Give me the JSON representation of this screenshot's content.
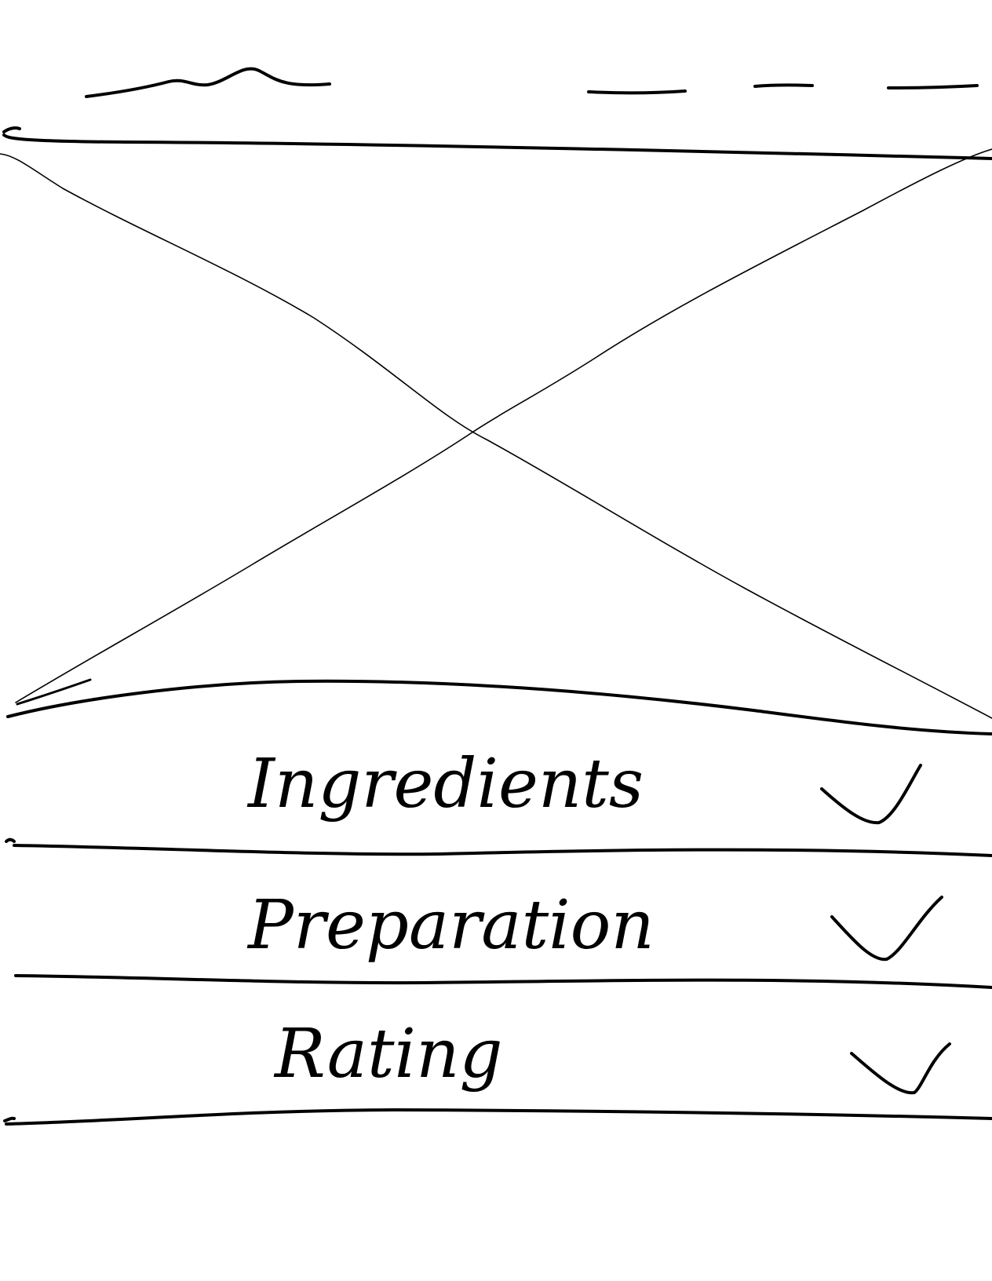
{
  "sections": [
    {
      "id": "ingredients",
      "label": "Ingredients",
      "check_icon": "check-icon"
    },
    {
      "id": "preparation",
      "label": "Preparation",
      "check_icon": "check-icon"
    },
    {
      "id": "rating",
      "label": "Rating",
      "check_icon": "check-icon"
    }
  ],
  "colors": {
    "ink": "#000000",
    "paper": "#ffffff"
  }
}
